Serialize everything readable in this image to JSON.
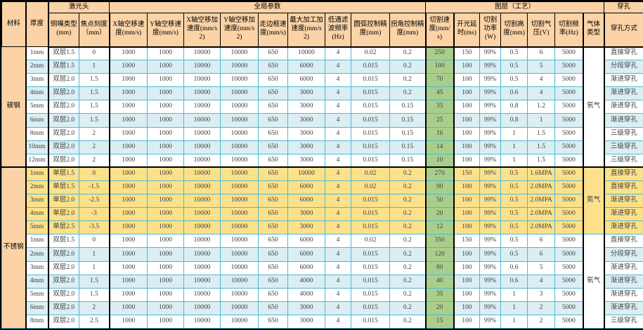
{
  "colors": {
    "header_bg": "#FBD3A6",
    "stripe_white": "#FFFFFF",
    "stripe_blue": "#DAEEF3",
    "nitrogen_yellow": "#FCE18A",
    "speed_green": "#A9CE8C",
    "grid_line": "#4FB8D3",
    "frame": "#000000"
  },
  "header": {
    "material": "材料",
    "thickness": "厚度",
    "groups": [
      {
        "label": "激光头",
        "columns": [
          "铜嘴类型(mm)",
          "焦点刻度（mm）"
        ]
      },
      {
        "label": "全局参数",
        "columns": [
          "X轴空移速度(mm/s)",
          "Y轴空移速度(mm/s)",
          "X轴空移加速度(mm/s2)",
          "Y轴空移加速度(mm/s2)",
          "走边框速度(mm/s)",
          "最大加工加速度(mm/s2)",
          "低通滤波频率(Hz)",
          "圆弧控制精度(mm)",
          "拐角控制精度(mm)"
        ]
      },
      {
        "label": "图层（工艺）",
        "columns": [
          "切割速度(mm/s)",
          "开光延时(ms)",
          "切割功率(W)",
          "切割高度(mm)",
          "切割气压(V)",
          "切割频率(Hz)",
          "气体类型"
        ]
      },
      {
        "label": "穿孔",
        "columns": [
          "穿孔方式"
        ]
      }
    ]
  },
  "sections": [
    {
      "material": "碳钢",
      "subsections": [
        {
          "gas": "氧气",
          "style": "striped",
          "rows": [
            [
              "1mm",
              "双层1.5",
              "0",
              "1000",
              "1000",
              "10000",
              "10000",
              "650",
              "10000",
              "4",
              "0.02",
              "0.2",
              "250",
              "150",
              "99%",
              "0.5",
              "6",
              "5000",
              "直接穿孔"
            ],
            [
              "2mm",
              "双层1.5",
              "1",
              "1000",
              "1000",
              "10000",
              "10000",
              "650",
              "6000",
              "4",
              "0.015",
              "0.2",
              "100",
              "100",
              "99%",
              "0.5",
              "5",
              "5000",
              "分段穿孔"
            ],
            [
              "3mm",
              "双层2.0",
              "1.5",
              "1000",
              "1000",
              "10000",
              "10000",
              "650",
              "6000",
              "4",
              "0.015",
              "0.2",
              "70",
              "100",
              "99%",
              "0.5",
              "4",
              "5000",
              "渐进穿孔"
            ],
            [
              "4mm",
              "双层2.0",
              "1.5",
              "1000",
              "1000",
              "10000",
              "10000",
              "650",
              "3000",
              "4",
              "0.015",
              "0.2",
              "45",
              "100",
              "99%",
              "0.6",
              "4",
              "5000",
              "渐进穿孔"
            ],
            [
              "5mm",
              "双层2.0",
              "1.5",
              "1000",
              "1000",
              "10000",
              "10000",
              "650",
              "3000",
              "4",
              "0.015",
              "0.15",
              "35",
              "100",
              "99%",
              "0.8",
              "1.2",
              "5000",
              "渐进穿孔"
            ],
            [
              "6mm",
              "双层2.0",
              "1.5",
              "1000",
              "1000",
              "10000",
              "10000",
              "650",
              "3000",
              "4",
              "0.015",
              "0.15",
              "25",
              "100",
              "99%",
              "0.8",
              "1",
              "5000",
              "渐进穿孔"
            ],
            [
              "8mm",
              "双层2.0",
              "2",
              "1000",
              "1000",
              "10000",
              "10000",
              "650",
              "3000",
              "4",
              "0.015",
              "0.15",
              "16",
              "100",
              "99%",
              "1",
              "1.5",
              "5000",
              "三级穿孔"
            ],
            [
              "10mm",
              "双层2.0",
              "2",
              "1000",
              "1000",
              "10000",
              "10000",
              "650",
              "3000",
              "4",
              "0.015",
              "0.15",
              "14",
              "100",
              "99%",
              "1",
              "1.5",
              "5000",
              "三级穿孔"
            ],
            [
              "12mm",
              "双层2.0",
              "2",
              "1000",
              "1000",
              "10000",
              "10000",
              "650",
              "3000",
              "4",
              "0.015",
              "0.15",
              "10",
              "100",
              "99%",
              "1",
              "1.5",
              "5000",
              "三级穿孔"
            ]
          ]
        }
      ]
    },
    {
      "material": "不锈钢",
      "subsections": [
        {
          "gas": "氮气",
          "style": "yellow",
          "rows": [
            [
              "1mm",
              "单层1.5",
              "0",
              "1000",
              "1000",
              "10000",
              "10000",
              "650",
              "10000",
              "4",
              "0.02",
              "0.2",
              "270",
              "150",
              "99%",
              "0.5",
              "1.6MPA",
              "5000",
              "直接穿孔"
            ],
            [
              "2mm",
              "单层1.5",
              "-1.5",
              "1000",
              "1000",
              "10000",
              "10000",
              "650",
              "6000",
              "4",
              "0.02",
              "0.2",
              "90",
              "100",
              "99%",
              "0.5",
              "2.0MPA",
              "5000",
              "直接穿孔"
            ],
            [
              "3mm",
              "单层2.0",
              "-2.5",
              "1000",
              "1000",
              "10000",
              "10000",
              "650",
              "6000",
              "4",
              "0.015",
              "0.2",
              "50",
              "100",
              "99%",
              "0.5",
              "2.0MPA",
              "5000",
              "渐进穿孔"
            ],
            [
              "4mm",
              "单层2.0",
              "-3",
              "1000",
              "1000",
              "10000",
              "10000",
              "650",
              "3000",
              "4",
              "0.015",
              "0.2",
              "20",
              "100",
              "99%",
              "0.5",
              "2.0MPA",
              "5000",
              "渐进穿孔"
            ],
            [
              "5mm",
              "单层2.5",
              "-3.5",
              "1000",
              "1000",
              "10000",
              "10000",
              "650",
              "3000",
              "4",
              "0.015",
              "0.2",
              "12",
              "100",
              "99%",
              "0.5",
              "2.0MPA",
              "5000",
              "渐进穿孔"
            ]
          ]
        },
        {
          "gas": "氧气",
          "style": "striped",
          "rows": [
            [
              "1mm",
              "双层1.5",
              "0",
              "1000",
              "1000",
              "10000",
              "10000",
              "650",
              "6000",
              "4",
              "0.02",
              "0.2",
              "350",
              "150",
              "99%",
              "0.5",
              "6",
              "5000",
              "直接穿孔"
            ],
            [
              "2mm",
              "双层2.0",
              "1",
              "1000",
              "1000",
              "10000",
              "10000",
              "650",
              "6000",
              "4",
              "0.015",
              "0.2",
              "120",
              "100",
              "99%",
              "0.5",
              "6",
              "5000",
              "分段穿孔"
            ],
            [
              "3mm",
              "双层2.0",
              "1",
              "1000",
              "1000",
              "10000",
              "10000",
              "650",
              "6000",
              "4",
              "0.015",
              "0.2",
              "80",
              "100",
              "99%",
              "0.6",
              "5",
              "5000",
              "渐进穿孔"
            ],
            [
              "4mm",
              "双层2.0",
              "1.5",
              "1000",
              "1000",
              "10000",
              "10000",
              "650",
              "4000",
              "4",
              "0.015",
              "0.2",
              "40",
              "100",
              "99%",
              "0.6",
              "4",
              "5000",
              "渐进穿孔"
            ],
            [
              "5mm",
              "双层2.0",
              "1.5",
              "1000",
              "1000",
              "10000",
              "10000",
              "650",
              "4000",
              "4",
              "0.015",
              "0.2",
              "35",
              "100",
              "99%",
              "1",
              "3",
              "5000",
              "渐进穿孔"
            ],
            [
              "6mm",
              "双层2.0",
              "2",
              "1000",
              "1000",
              "10000",
              "10000",
              "650",
              "3000",
              "4",
              "0.015",
              "0.2",
              "20",
              "100",
              "99%",
              "1",
              "2",
              "5000",
              "渐进穿孔"
            ],
            [
              "8mm",
              "双层2.0",
              "2.5",
              "1000",
              "1000",
              "10000",
              "10000",
              "650",
              "3000",
              "4",
              "0.015",
              "0.2",
              "15",
              "100",
              "99%",
              "1",
              "2",
              "5000",
              "三级穿孔"
            ]
          ]
        }
      ]
    }
  ]
}
